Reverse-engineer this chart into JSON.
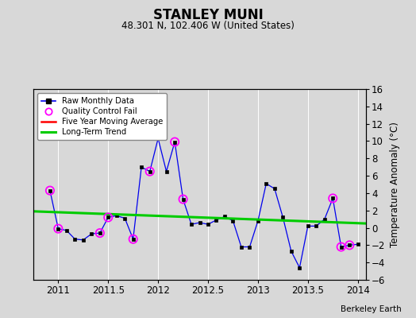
{
  "title": "STANLEY MUNI",
  "subtitle": "48.301 N, 102.406 W (United States)",
  "ylabel": "Temperature Anomaly (°C)",
  "attribution": "Berkeley Earth",
  "xlim": [
    2010.75,
    2014.083
  ],
  "ylim": [
    -6,
    16
  ],
  "yticks": [
    -6,
    -4,
    -2,
    0,
    2,
    4,
    6,
    8,
    10,
    12,
    14,
    16
  ],
  "xticks": [
    2011,
    2011.5,
    2012,
    2012.5,
    2013,
    2013.5,
    2014
  ],
  "xticklabels": [
    "2011",
    "2011.5",
    "2012",
    "2012.5",
    "2013",
    "2013.5",
    "2014"
  ],
  "raw_x": [
    2010.917,
    2011.0,
    2011.083,
    2011.167,
    2011.25,
    2011.333,
    2011.417,
    2011.5,
    2011.583,
    2011.667,
    2011.75,
    2011.833,
    2011.917,
    2012.0,
    2012.083,
    2012.167,
    2012.25,
    2012.333,
    2012.417,
    2012.5,
    2012.583,
    2012.667,
    2012.75,
    2012.833,
    2012.917,
    2013.0,
    2013.083,
    2013.167,
    2013.25,
    2013.333,
    2013.417,
    2013.5,
    2013.583,
    2013.667,
    2013.75,
    2013.833,
    2013.917,
    2014.0
  ],
  "raw_y": [
    4.3,
    -0.1,
    -0.3,
    -1.3,
    -1.4,
    -0.7,
    -0.6,
    1.2,
    1.4,
    1.1,
    -1.3,
    7.0,
    6.5,
    10.3,
    6.5,
    9.9,
    3.3,
    0.4,
    0.6,
    0.4,
    0.9,
    1.3,
    0.8,
    -2.2,
    -2.2,
    0.8,
    5.1,
    4.5,
    1.2,
    -2.7,
    -4.6,
    0.2,
    0.2,
    1.0,
    3.4,
    -2.2,
    -2.0,
    -1.9
  ],
  "qc_fail_x": [
    2010.917,
    2011.0,
    2011.417,
    2011.5,
    2011.75,
    2011.917,
    2012.167,
    2012.25,
    2013.75,
    2013.833,
    2013.917
  ],
  "qc_fail_y": [
    4.3,
    -0.1,
    -0.6,
    1.2,
    -1.3,
    6.5,
    9.9,
    3.3,
    3.4,
    -2.2,
    -2.0
  ],
  "trend_x": [
    2010.75,
    2014.083
  ],
  "trend_y": [
    1.9,
    0.5
  ],
  "bg_color": "#d8d8d8",
  "plot_bg_color": "#d8d8d8",
  "line_color": "#0000ee",
  "marker_color": "#000000",
  "qc_color": "#ff00ff",
  "trend_color": "#00cc00",
  "moving_avg_color": "#ff0000",
  "grid_color": "#ffffff"
}
